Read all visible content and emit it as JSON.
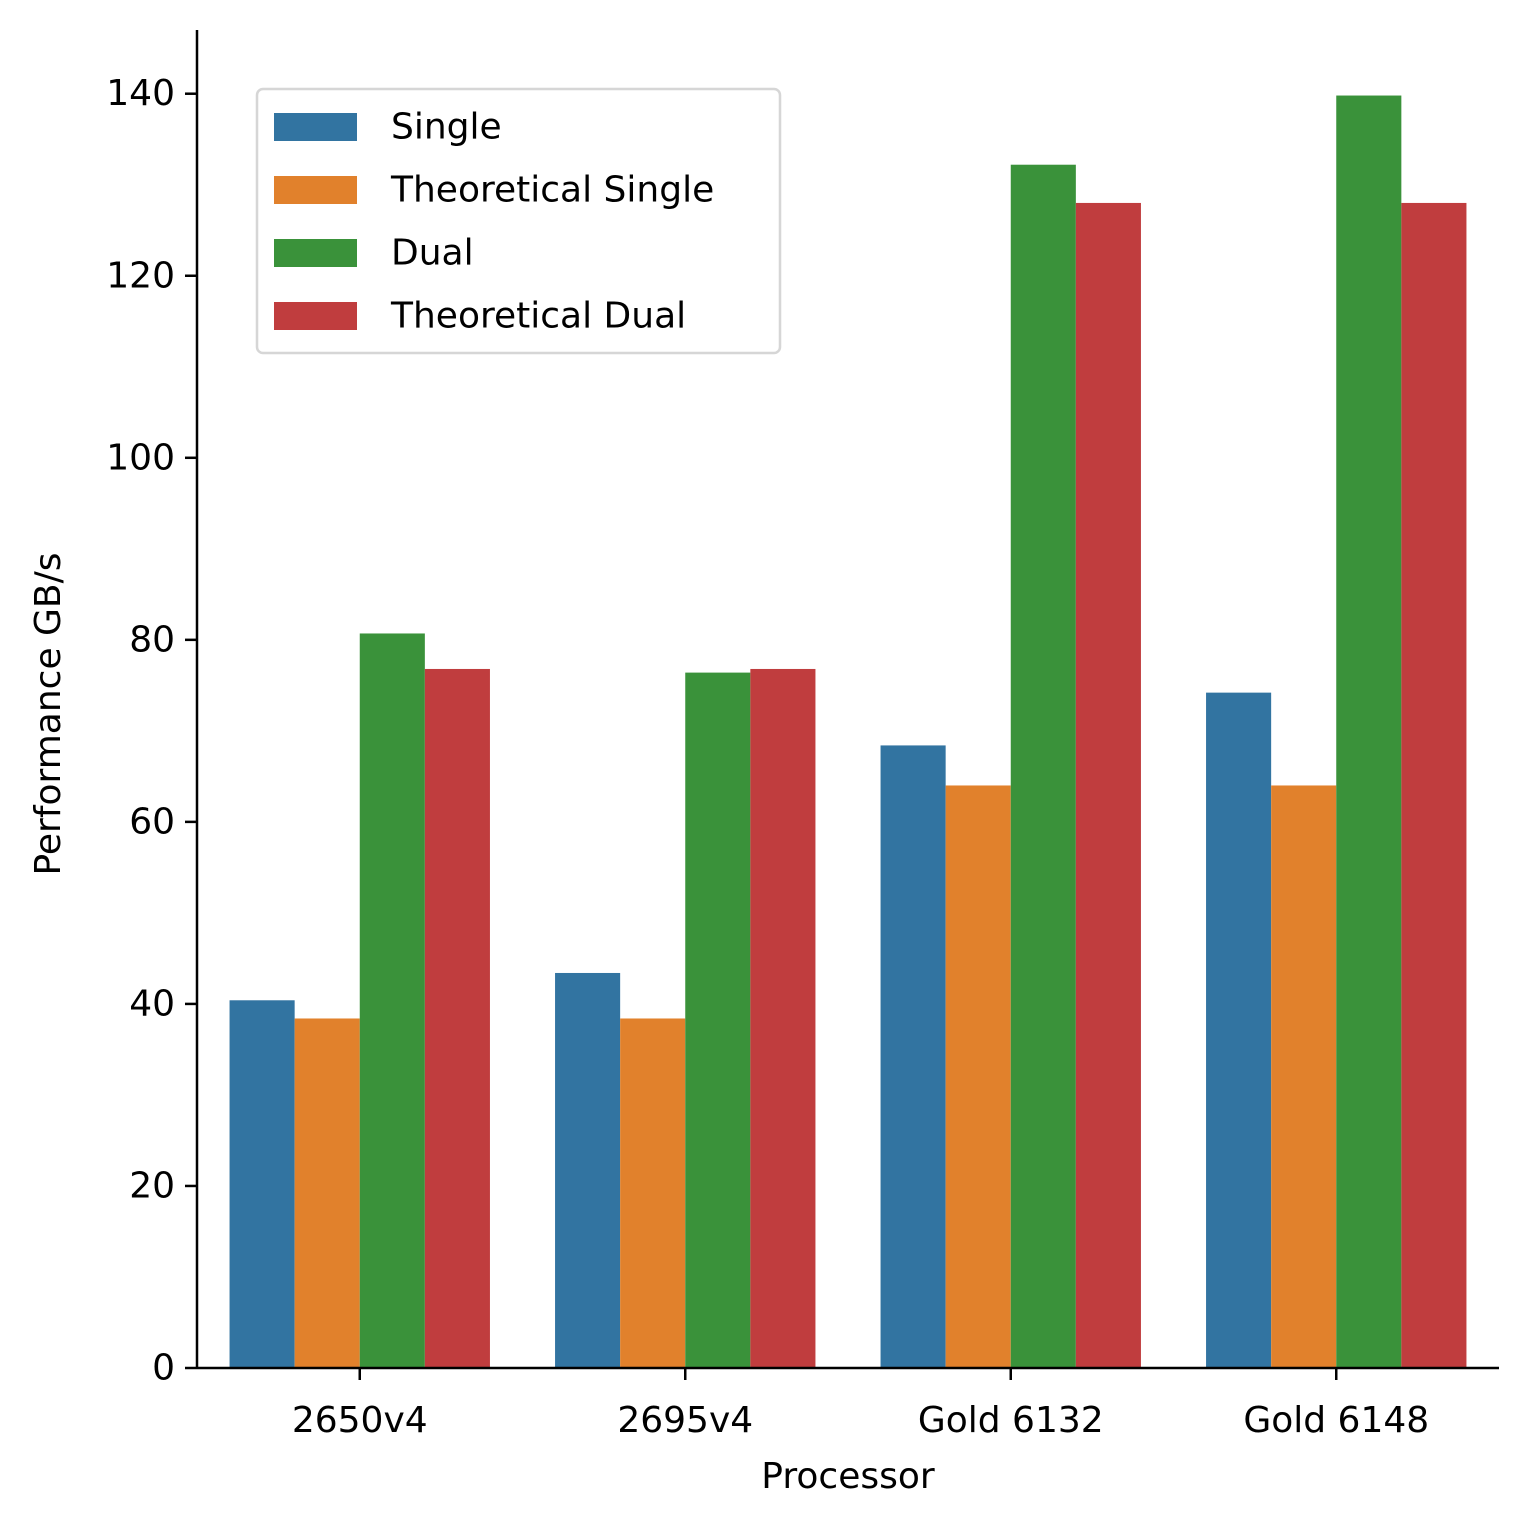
{
  "chart_data": {
    "type": "bar",
    "xlabel": "Processor",
    "ylabel": "Performance GB/s",
    "categories": [
      "2650v4",
      "2695v4",
      "Gold 6132",
      "Gold 6148"
    ],
    "series": [
      {
        "name": "Single",
        "color": "#3274a1",
        "values": [
          40.4,
          43.4,
          68.4,
          74.2
        ]
      },
      {
        "name": "Theoretical Single",
        "color": "#e1812c",
        "values": [
          38.4,
          38.4,
          64.0,
          64.0
        ]
      },
      {
        "name": "Dual",
        "color": "#3a923a",
        "values": [
          80.7,
          76.4,
          132.2,
          139.8
        ]
      },
      {
        "name": "Theoretical Dual",
        "color": "#c03d3e",
        "values": [
          76.8,
          76.8,
          128.0,
          128.0
        ]
      }
    ],
    "ylim": [
      0,
      147
    ],
    "yticks": [
      0,
      20,
      40,
      60,
      80,
      100,
      120,
      140
    ],
    "grid": false,
    "legend_position": "top-left"
  }
}
